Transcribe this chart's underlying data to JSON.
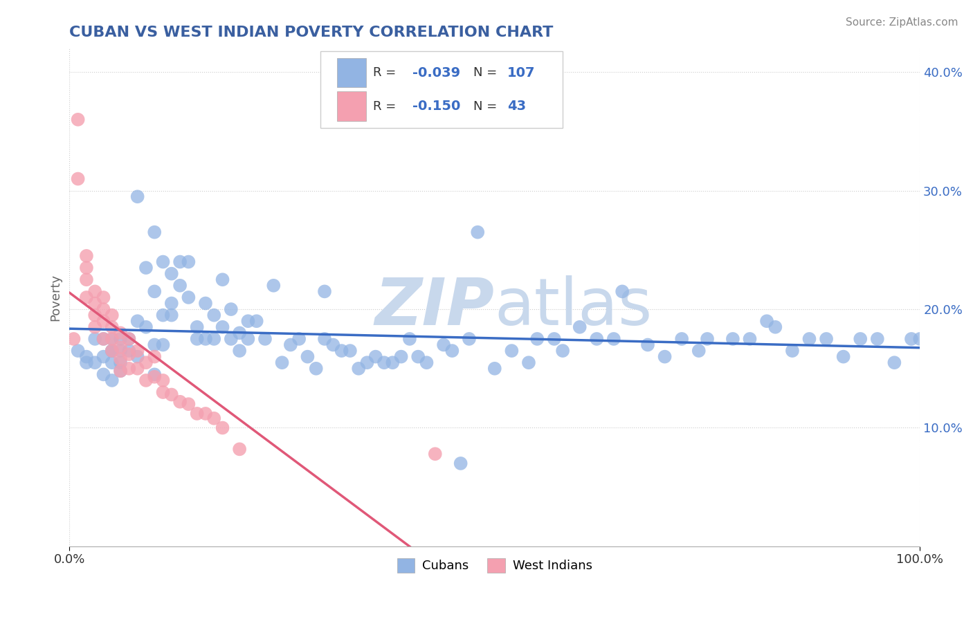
{
  "title": "CUBAN VS WEST INDIAN POVERTY CORRELATION CHART",
  "source": "Source: ZipAtlas.com",
  "ylabel": "Poverty",
  "xlim": [
    0,
    1
  ],
  "ylim": [
    0.0,
    0.42
  ],
  "ytick_vals": [
    0.1,
    0.2,
    0.3,
    0.4
  ],
  "ytick_labels": [
    "10.0%",
    "20.0%",
    "30.0%",
    "40.0%"
  ],
  "xtick_vals": [
    0.0,
    1.0
  ],
  "xtick_labels": [
    "0.0%",
    "100.0%"
  ],
  "cubans_R": "-0.039",
  "cubans_N": "107",
  "west_indians_R": "-0.150",
  "west_indians_N": "43",
  "blue_color": "#92B4E3",
  "pink_color": "#F4A0B0",
  "blue_line_color": "#3a6cc4",
  "pink_line_color": "#E05878",
  "watermark_color": "#C8D8EC",
  "title_color": "#3a5fa0",
  "source_color": "#888888",
  "background_color": "#ffffff",
  "grid_color": "#CCCCCC",
  "legend_edge_color": "#cccccc",
  "cubans_x": [
    0.01,
    0.02,
    0.02,
    0.03,
    0.03,
    0.04,
    0.04,
    0.04,
    0.05,
    0.05,
    0.05,
    0.05,
    0.05,
    0.06,
    0.06,
    0.06,
    0.06,
    0.07,
    0.07,
    0.08,
    0.08,
    0.08,
    0.09,
    0.09,
    0.1,
    0.1,
    0.1,
    0.1,
    0.11,
    0.11,
    0.11,
    0.12,
    0.12,
    0.12,
    0.13,
    0.13,
    0.14,
    0.14,
    0.15,
    0.15,
    0.16,
    0.16,
    0.17,
    0.17,
    0.18,
    0.18,
    0.19,
    0.19,
    0.2,
    0.2,
    0.21,
    0.21,
    0.22,
    0.23,
    0.24,
    0.25,
    0.26,
    0.27,
    0.28,
    0.29,
    0.3,
    0.31,
    0.32,
    0.33,
    0.34,
    0.35,
    0.36,
    0.37,
    0.38,
    0.39,
    0.4,
    0.41,
    0.42,
    0.44,
    0.45,
    0.47,
    0.48,
    0.5,
    0.52,
    0.54,
    0.55,
    0.57,
    0.58,
    0.6,
    0.62,
    0.65,
    0.68,
    0.7,
    0.72,
    0.74,
    0.75,
    0.78,
    0.8,
    0.83,
    0.85,
    0.87,
    0.89,
    0.91,
    0.93,
    0.95,
    0.97,
    0.99,
    1.0,
    0.3,
    0.46,
    0.64,
    0.82
  ],
  "cubans_y": [
    0.165,
    0.16,
    0.155,
    0.175,
    0.155,
    0.175,
    0.16,
    0.145,
    0.175,
    0.165,
    0.155,
    0.14,
    0.165,
    0.175,
    0.165,
    0.155,
    0.148,
    0.175,
    0.165,
    0.295,
    0.19,
    0.16,
    0.235,
    0.185,
    0.265,
    0.215,
    0.17,
    0.145,
    0.24,
    0.195,
    0.17,
    0.23,
    0.205,
    0.195,
    0.24,
    0.22,
    0.24,
    0.21,
    0.185,
    0.175,
    0.205,
    0.175,
    0.195,
    0.175,
    0.225,
    0.185,
    0.2,
    0.175,
    0.18,
    0.165,
    0.19,
    0.175,
    0.19,
    0.175,
    0.22,
    0.155,
    0.17,
    0.175,
    0.16,
    0.15,
    0.215,
    0.17,
    0.165,
    0.165,
    0.15,
    0.155,
    0.16,
    0.155,
    0.155,
    0.16,
    0.175,
    0.16,
    0.155,
    0.17,
    0.165,
    0.175,
    0.265,
    0.15,
    0.165,
    0.155,
    0.175,
    0.175,
    0.165,
    0.185,
    0.175,
    0.215,
    0.17,
    0.16,
    0.175,
    0.165,
    0.175,
    0.175,
    0.175,
    0.185,
    0.165,
    0.175,
    0.175,
    0.16,
    0.175,
    0.175,
    0.155,
    0.175,
    0.175,
    0.175,
    0.07,
    0.175,
    0.19
  ],
  "west_indians_x": [
    0.005,
    0.01,
    0.01,
    0.02,
    0.02,
    0.02,
    0.02,
    0.03,
    0.03,
    0.03,
    0.03,
    0.04,
    0.04,
    0.04,
    0.04,
    0.05,
    0.05,
    0.05,
    0.05,
    0.06,
    0.06,
    0.06,
    0.06,
    0.07,
    0.07,
    0.07,
    0.08,
    0.08,
    0.09,
    0.09,
    0.1,
    0.1,
    0.11,
    0.11,
    0.12,
    0.13,
    0.14,
    0.15,
    0.16,
    0.17,
    0.18,
    0.2,
    0.43
  ],
  "west_indians_y": [
    0.175,
    0.36,
    0.31,
    0.245,
    0.235,
    0.225,
    0.21,
    0.215,
    0.205,
    0.195,
    0.185,
    0.21,
    0.2,
    0.19,
    0.175,
    0.195,
    0.185,
    0.175,
    0.165,
    0.18,
    0.168,
    0.158,
    0.148,
    0.175,
    0.162,
    0.15,
    0.165,
    0.15,
    0.155,
    0.14,
    0.16,
    0.143,
    0.14,
    0.13,
    0.128,
    0.122,
    0.12,
    0.112,
    0.112,
    0.108,
    0.1,
    0.082,
    0.078
  ]
}
